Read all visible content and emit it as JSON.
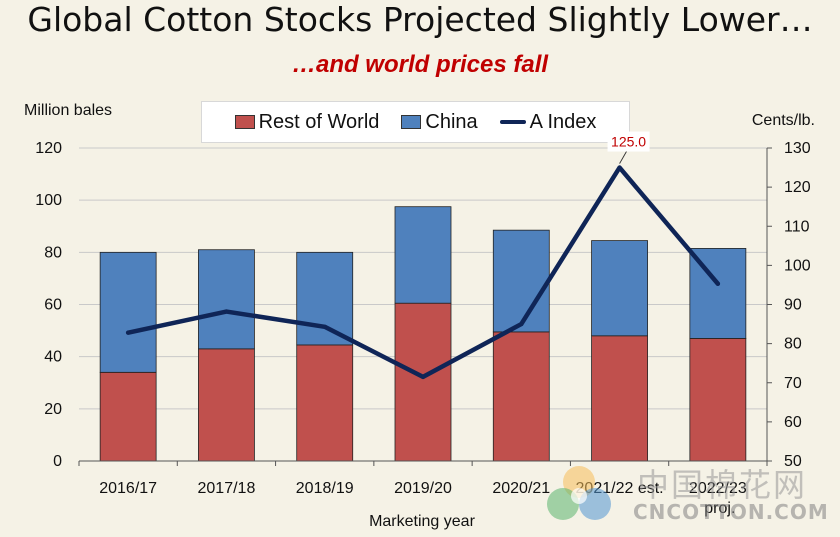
{
  "title": "Global Cotton Stocks Projected Slightly Lower…",
  "subtitle": "…and world prices fall",
  "legend": {
    "rest_of_world": "Rest of World",
    "china": "China",
    "a_index": "A Index"
  },
  "colors": {
    "rest_of_world": "#c0504d",
    "china": "#4f81bd",
    "a_index": "#0f2557",
    "background": "#f5f2e6"
  },
  "watermark": {
    "cn": "中国棉花网",
    "en": "CNCOTTON.COM"
  },
  "chart_data": {
    "type": "bar",
    "stacked": true,
    "categories": [
      "2016/17",
      "2017/18",
      "2018/19",
      "2019/20",
      "2020/21",
      "2021/22 est.",
      "2022/23 proj."
    ],
    "series": [
      {
        "name": "Rest of World",
        "axis": "left",
        "type": "bar",
        "values": [
          34,
          43,
          44.5,
          60.5,
          49.5,
          48,
          47
        ]
      },
      {
        "name": "China",
        "axis": "left",
        "type": "bar",
        "values": [
          46,
          38,
          35.5,
          37,
          39,
          36.5,
          34.5
        ]
      },
      {
        "name": "A Index",
        "axis": "right",
        "type": "line",
        "values": [
          82.8,
          88.2,
          84.3,
          71.5,
          85,
          125.0,
          95.3
        ]
      }
    ],
    "annotations": [
      {
        "series": "A Index",
        "category": "2021/22 est.",
        "label": "125.0"
      }
    ],
    "xlabel": "Marketing year",
    "ylabel_left": "Million bales",
    "ylabel_right": "Cents/lb.",
    "ylim_left": [
      0,
      120
    ],
    "ylim_right": [
      50,
      130
    ],
    "yticks_left": [
      0,
      20,
      40,
      60,
      80,
      100,
      120
    ],
    "yticks_right": [
      50,
      60,
      70,
      80,
      90,
      100,
      110,
      120,
      130
    ],
    "grid": true,
    "legend_position": "top"
  }
}
